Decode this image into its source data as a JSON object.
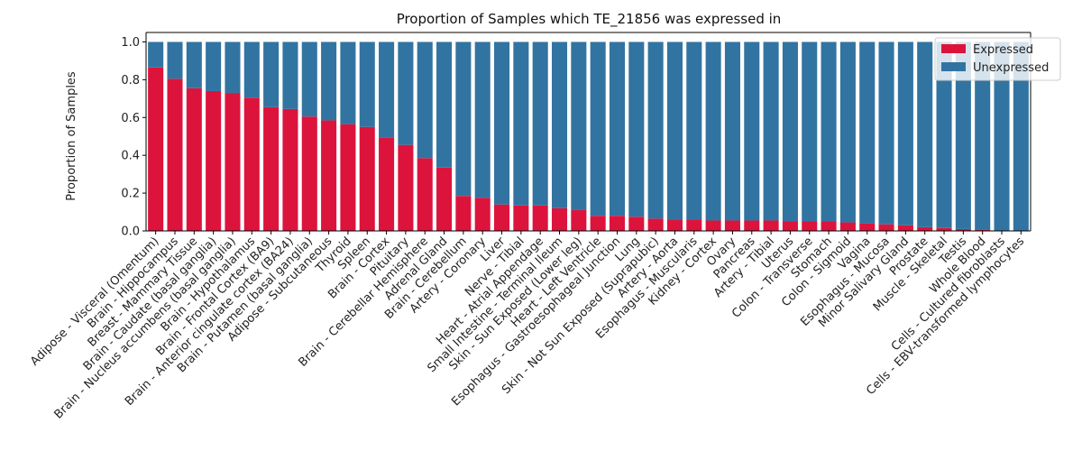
{
  "chart_data": {
    "type": "bar",
    "stacked": true,
    "title": "Proportion of Samples which TE_21856 was expressed in",
    "xlabel": "",
    "ylabel": "Proportion of Samples",
    "ylim": [
      0,
      1.05
    ],
    "yticks": [
      "0.0",
      "0.2",
      "0.4",
      "0.6",
      "0.8",
      "1.0"
    ],
    "legend_position": "top-right",
    "categories": [
      "Adipose - Visceral (Omentum)",
      "Brain - Hippocampus",
      "Breast - Mammary Tissue",
      "Brain - Caudate (basal ganglia)",
      "Brain - Nucleus accumbens (basal ganglia)",
      "Brain - Hypothalamus",
      "Brain - Frontal Cortex (BA9)",
      "Brain - Anterior cingulate cortex (BA24)",
      "Brain - Putamen (basal ganglia)",
      "Adipose - Subcutaneous",
      "Thyroid",
      "Spleen",
      "Brain - Cortex",
      "Pituitary",
      "Brain - Cerebellar Hemisphere",
      "Adrenal Gland",
      "Brain - Cerebellum",
      "Artery - Coronary",
      "Liver",
      "Nerve - Tibial",
      "Heart - Atrial Appendage",
      "Small Intestine - Terminal Ileum",
      "Skin - Sun Exposed (Lower leg)",
      "Heart - Left Ventricle",
      "Esophagus - Gastroesophageal Junction",
      "Lung",
      "Skin - Not Sun Exposed (Suprapubic)",
      "Artery - Aorta",
      "Esophagus - Muscularis",
      "Kidney - Cortex",
      "Ovary",
      "Pancreas",
      "Artery - Tibial",
      "Uterus",
      "Colon - Transverse",
      "Stomach",
      "Colon - Sigmoid",
      "Vagina",
      "Esophagus - Mucosa",
      "Minor Salivary Gland",
      "Prostate",
      "Muscle - Skeletal",
      "Testis",
      "Whole Blood",
      "Cells - Cultured fibroblasts",
      "Cells - EBV-transformed lymphocytes"
    ],
    "series": [
      {
        "name": "Expressed",
        "color": "#dc143c",
        "values": [
          0.865,
          0.805,
          0.755,
          0.74,
          0.73,
          0.705,
          0.655,
          0.645,
          0.605,
          0.585,
          0.565,
          0.55,
          0.495,
          0.455,
          0.385,
          0.335,
          0.185,
          0.175,
          0.14,
          0.135,
          0.135,
          0.12,
          0.11,
          0.08,
          0.08,
          0.075,
          0.065,
          0.06,
          0.06,
          0.055,
          0.055,
          0.055,
          0.055,
          0.05,
          0.05,
          0.05,
          0.045,
          0.04,
          0.035,
          0.03,
          0.02,
          0.015,
          0.01,
          0.005,
          0.0,
          0.0
        ]
      },
      {
        "name": "Unexpressed",
        "color": "#3274a1",
        "values": [
          0.135,
          0.195,
          0.245,
          0.26,
          0.27,
          0.295,
          0.345,
          0.355,
          0.395,
          0.415,
          0.435,
          0.45,
          0.505,
          0.545,
          0.615,
          0.665,
          0.815,
          0.825,
          0.86,
          0.865,
          0.865,
          0.88,
          0.89,
          0.92,
          0.92,
          0.925,
          0.935,
          0.94,
          0.94,
          0.945,
          0.945,
          0.945,
          0.945,
          0.95,
          0.95,
          0.95,
          0.955,
          0.96,
          0.965,
          0.97,
          0.98,
          0.985,
          0.99,
          0.995,
          1.0,
          1.0
        ]
      }
    ]
  }
}
